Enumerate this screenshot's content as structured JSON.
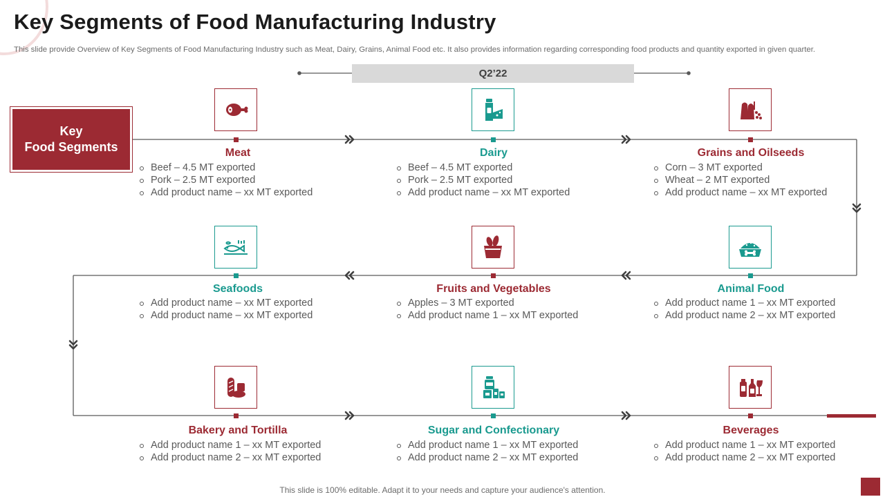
{
  "title": "Key Segments of Food Manufacturing Industry",
  "subtitle": "This slide provide Overview  of Key Segments of Food Manufacturing Industry such as Meat,  Dairy,  Grains, Animal Food etc.  It also provides information regarding corresponding food products and quantity exported in given quarter.",
  "period": "Q2’22",
  "key_label": "Key\nFood Segments",
  "footer": "This slide is 100% editable. Adapt it to your needs and capture your audience's attention.",
  "colors": {
    "maroon": "#9c2a33",
    "teal": "#1a9a8f",
    "gray_bar": "#d9d9d9"
  },
  "segments": [
    {
      "title": "Meat",
      "color": "maroon",
      "icon": "meat-icon",
      "items": [
        "Beef – 4.5 MT exported",
        "Pork – 2.5 MT exported",
        "Add product name – xx MT exported"
      ]
    },
    {
      "title": "Dairy",
      "color": "teal",
      "icon": "dairy-icon",
      "items": [
        "Beef – 4.5 MT exported",
        "Pork – 2.5 MT exported",
        "Add product name – xx MT exported"
      ]
    },
    {
      "title": "Grains and Oilseeds",
      "color": "maroon",
      "icon": "grains-icon",
      "items": [
        "Corn – 3 MT exported",
        "Wheat – 2 MT exported",
        "Add product name – xx MT exported"
      ]
    },
    {
      "title": "Seafoods",
      "color": "teal",
      "icon": "seafood-icon",
      "items": [
        "Add product name – xx MT exported",
        "Add product name – xx MT exported"
      ]
    },
    {
      "title": "Fruits and Vegetables",
      "color": "maroon",
      "icon": "fruit-basket-icon",
      "items": [
        "Apples – 3 MT exported",
        "Add product name 1 – xx MT exported"
      ]
    },
    {
      "title": "Animal Food",
      "color": "teal",
      "icon": "pet-bowl-icon",
      "items": [
        "Add product name 1 – xx MT exported",
        "Add product name 2 – xx MT exported"
      ]
    },
    {
      "title": "Bakery and Tortilla",
      "color": "maroon",
      "icon": "bread-icon",
      "items": [
        "Add product name 1 – xx MT exported",
        "Add product name 2 – xx MT exported"
      ]
    },
    {
      "title": "Sugar and Confectionary",
      "color": "teal",
      "icon": "sugar-jars-icon",
      "items": [
        "Add product name 1  – xx MT exported",
        "Add product name 2 – xx MT exported"
      ]
    },
    {
      "title": "Beverages",
      "color": "maroon",
      "icon": "bottles-icon",
      "items": [
        "Add product name 1  – xx MT exported",
        "Add product name 2 – xx MT exported"
      ]
    }
  ]
}
